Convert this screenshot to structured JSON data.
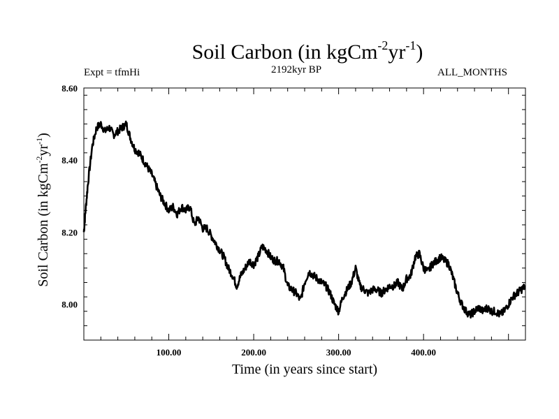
{
  "chart_data": {
    "type": "line",
    "title_main": "Soil Carbon (in kgCm",
    "title_sup1": "-2",
    "title_mid": "yr",
    "title_sup2": "-1",
    "title_end": ")",
    "subtitle_left": "Expt = tfmHi",
    "subtitle_center": "2192kyr BP",
    "subtitle_right": "ALL_MONTHS",
    "xlabel": "Time (in years since start)",
    "ylabel_main": "Soil Carbon (in kgCm",
    "ylabel_sup1": "-2",
    "ylabel_mid": "yr",
    "ylabel_sup2": "-1",
    "ylabel_end": ")",
    "xlim": [
      0,
      520
    ],
    "ylim": [
      7.9,
      8.6
    ],
    "x_ticks": [
      {
        "value": 100,
        "label": "100.00"
      },
      {
        "value": 200,
        "label": "200.00"
      },
      {
        "value": 300,
        "label": "300.00"
      },
      {
        "value": 400,
        "label": "400.00"
      }
    ],
    "y_ticks": [
      {
        "value": 8.0,
        "label": "8.00"
      },
      {
        "value": 8.2,
        "label": "8.20"
      },
      {
        "value": 8.4,
        "label": "8.40"
      },
      {
        "value": 8.6,
        "label": "8.60"
      }
    ],
    "series": [
      {
        "color": "#000000",
        "x": [
          0,
          2,
          5,
          10,
          15,
          20,
          25,
          30,
          35,
          40,
          45,
          50,
          55,
          60,
          65,
          70,
          75,
          80,
          85,
          90,
          95,
          100,
          105,
          110,
          115,
          120,
          125,
          130,
          135,
          140,
          145,
          150,
          155,
          160,
          165,
          170,
          175,
          180,
          185,
          190,
          195,
          200,
          205,
          210,
          215,
          220,
          225,
          230,
          235,
          240,
          245,
          250,
          255,
          260,
          265,
          270,
          275,
          280,
          285,
          290,
          295,
          300,
          305,
          310,
          315,
          320,
          325,
          330,
          335,
          340,
          345,
          350,
          355,
          360,
          365,
          370,
          375,
          380,
          385,
          390,
          395,
          400,
          405,
          410,
          415,
          420,
          425,
          430,
          435,
          440,
          445,
          450,
          455,
          460,
          465,
          470,
          475,
          480,
          485,
          490,
          495,
          500,
          505,
          510,
          515,
          520
        ],
        "y": [
          8.2,
          8.26,
          8.34,
          8.44,
          8.49,
          8.5,
          8.48,
          8.49,
          8.47,
          8.48,
          8.49,
          8.5,
          8.46,
          8.43,
          8.42,
          8.4,
          8.38,
          8.36,
          8.33,
          8.3,
          8.28,
          8.26,
          8.27,
          8.25,
          8.27,
          8.26,
          8.27,
          8.22,
          8.24,
          8.21,
          8.21,
          8.19,
          8.17,
          8.15,
          8.13,
          8.1,
          8.08,
          8.05,
          8.08,
          8.1,
          8.12,
          8.11,
          8.13,
          8.16,
          8.15,
          8.13,
          8.12,
          8.12,
          8.1,
          8.05,
          8.04,
          8.03,
          8.01,
          8.06,
          8.09,
          8.08,
          8.07,
          8.06,
          8.05,
          8.03,
          8.0,
          7.98,
          8.02,
          8.04,
          8.06,
          8.1,
          8.05,
          8.04,
          8.03,
          8.04,
          8.04,
          8.03,
          8.04,
          8.05,
          8.05,
          8.06,
          8.04,
          8.07,
          8.08,
          8.13,
          8.14,
          8.1,
          8.09,
          8.11,
          8.12,
          8.13,
          8.12,
          8.11,
          8.07,
          8.03,
          8.0,
          7.98,
          7.97,
          7.98,
          7.99,
          7.98,
          7.99,
          7.98,
          7.98,
          7.97,
          7.98,
          8.0,
          8.02,
          8.03,
          8.04,
          8.05
        ]
      }
    ]
  }
}
